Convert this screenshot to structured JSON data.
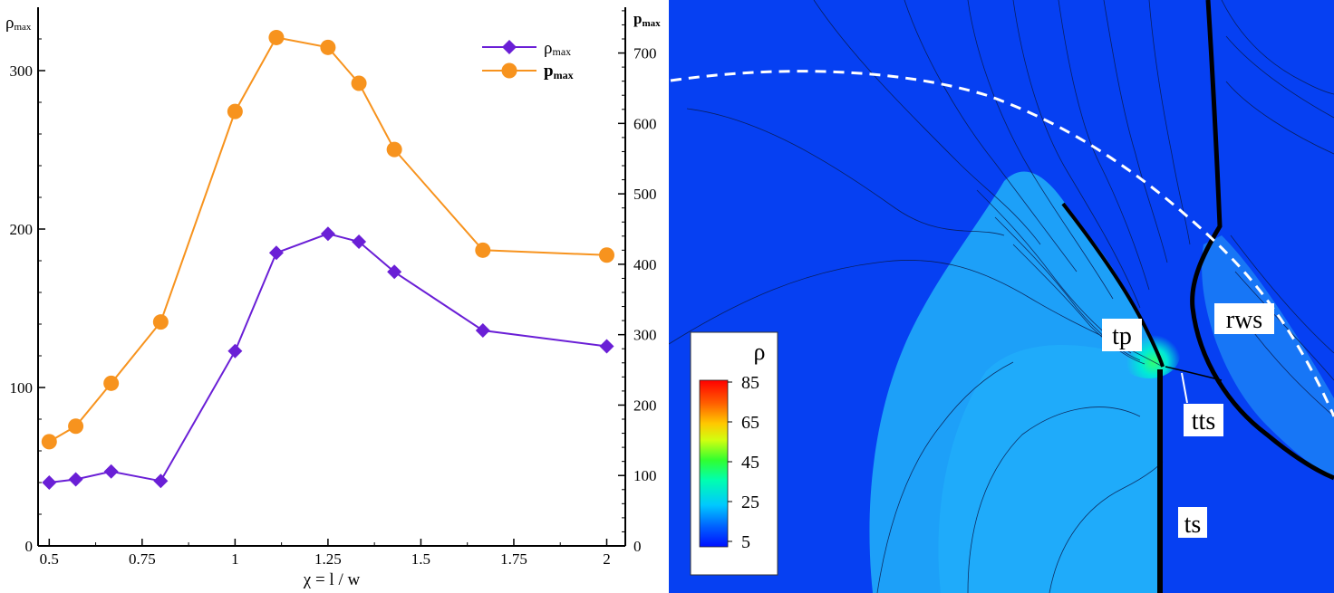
{
  "chart_data": {
    "type": "line",
    "xlabel": "χ = l / w",
    "ylabel_left": {
      "main": "ρ",
      "sub": "max"
    },
    "ylabel_right": {
      "main": "p",
      "sub": "max"
    },
    "xlim": [
      0.47,
      2.05
    ],
    "ylim_left": [
      0,
      340
    ],
    "ylim_right": [
      0,
      765
    ],
    "x_ticks": [
      0.5,
      0.75,
      1,
      1.25,
      1.5,
      1.75,
      2
    ],
    "x_tick_labels": [
      "0.5",
      "0.75",
      "1",
      "1.25",
      "1.5",
      "1.75",
      "2"
    ],
    "y_ticks_left": [
      0,
      100,
      200,
      300
    ],
    "y_ticks_right": [
      0,
      100,
      200,
      300,
      400,
      500,
      600,
      700
    ],
    "grid": false,
    "legend_position": "top-right",
    "series": [
      {
        "name_main": "ρ",
        "name_sub": "max",
        "axis": "left",
        "color": "#6a1fd6",
        "marker": "diamond",
        "x": [
          0.5,
          0.5714,
          0.6667,
          0.8,
          1,
          1.1111,
          1.25,
          1.3333,
          1.4286,
          1.6667,
          2
        ],
        "values": [
          40,
          42,
          47,
          41,
          123,
          185,
          197,
          192,
          173,
          136,
          126
        ]
      },
      {
        "name_main": "p",
        "name_sub": "max",
        "axis": "right",
        "color": "#f7931e",
        "marker": "circle",
        "x": [
          0.5,
          0.5714,
          0.6667,
          0.8,
          1,
          1.1111,
          1.25,
          1.3333,
          1.4286,
          1.6667,
          2
        ],
        "values": [
          148,
          170,
          231,
          318,
          617,
          722,
          708,
          657,
          563,
          420,
          413
        ]
      }
    ]
  },
  "field_panel": {
    "colorbar": {
      "title": "ρ",
      "tick_labels": [
        "85",
        "65",
        "45",
        "25",
        "5"
      ],
      "tick_values": [
        85,
        65,
        45,
        25,
        5
      ]
    },
    "annotations": [
      "tp",
      "tts",
      "rws",
      "ts"
    ]
  }
}
